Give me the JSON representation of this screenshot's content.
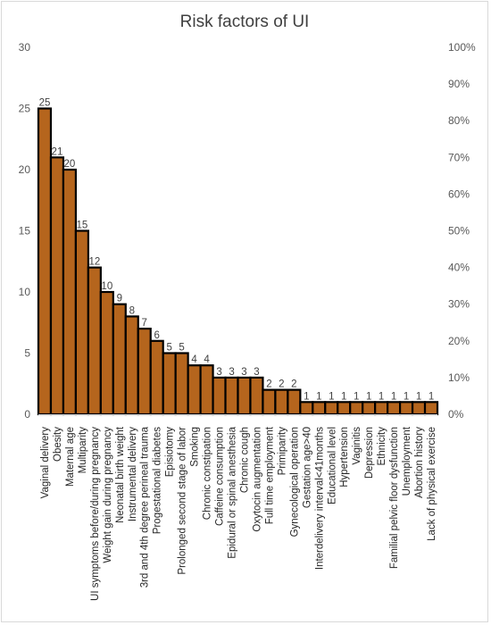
{
  "chart_data": {
    "type": "bar",
    "title": "Risk factors of UI",
    "categories": [
      "Vaginal delivery",
      "Obesity",
      "Maternal age",
      "Multiparity",
      "UI symptoms before/during pregnancy",
      "Weight gain during pregnancy",
      "Neonatal birth weight",
      "Instrumental delivery",
      "3rd and 4th degree perineal trauma",
      "Progestational diabetes",
      "Episiotomy",
      "Prolonged second stage of labor",
      "Smoking",
      "Chronic constipation",
      "Caffeine consumption",
      "Epidural or spinal anesthesia",
      "Chronic cough",
      "Oxytocin augmentation",
      "Full time employment",
      "Primiparity",
      "Gynecological operation",
      "Gestation age>40",
      "Interdelivery interval<41months",
      "Educational level",
      "Hypertension",
      "Vaginitis",
      "Depression",
      "Ethnicity",
      "Familial pelvic floor dysfunction",
      "Unemployment",
      "Abortion history",
      "Lack of physical exercise"
    ],
    "values": [
      25,
      21,
      20,
      15,
      12,
      10,
      9,
      8,
      7,
      6,
      5,
      5,
      4,
      4,
      3,
      3,
      3,
      3,
      2,
      2,
      2,
      1,
      1,
      1,
      1,
      1,
      1,
      1,
      1,
      1,
      1,
      1
    ],
    "ylim": [
      0,
      30
    ],
    "yticks": [
      "0",
      "5",
      "10",
      "15",
      "20",
      "25",
      "30"
    ],
    "y2lim": [
      0,
      100
    ],
    "y2ticks": [
      "0%",
      "10%",
      "20%",
      "30%",
      "40%",
      "50%",
      "60%",
      "70%",
      "80%",
      "90%",
      "100%"
    ],
    "grid": false,
    "legend": "none",
    "colors": {
      "bar_fill": "#B5651D",
      "bar_edge": "#000000",
      "label_color": "#404040"
    }
  }
}
